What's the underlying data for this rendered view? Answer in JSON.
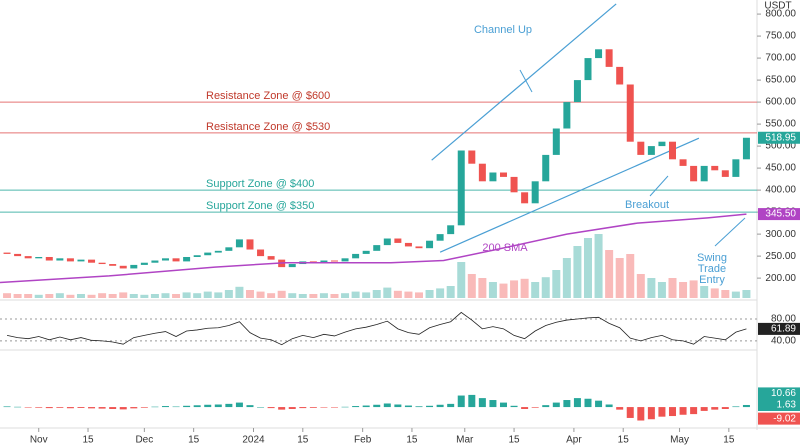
{
  "chart_data": {
    "type": "candlestick",
    "currency": "USDT",
    "xlim": [
      -11,
      204
    ],
    "ylim": [
      173,
      832
    ],
    "yticks": [
      {
        "value": 800,
        "label": "800.00"
      },
      {
        "value": 750,
        "label": "750.00"
      },
      {
        "value": 700,
        "label": "700.00"
      },
      {
        "value": 650,
        "label": "650.00"
      },
      {
        "value": 600,
        "label": "600.00"
      },
      {
        "value": 550,
        "label": "550.00"
      },
      {
        "value": 500,
        "label": "500.00"
      },
      {
        "value": 450,
        "label": "450.00"
      },
      {
        "value": 400,
        "label": "400.00"
      },
      {
        "value": 350,
        "label": "350.00"
      },
      {
        "value": 300,
        "label": "300.00"
      },
      {
        "value": 250,
        "label": "250.00"
      },
      {
        "value": 200,
        "label": "200.00"
      }
    ],
    "xticks": [
      {
        "value": 0,
        "label": "Nov"
      },
      {
        "value": 14,
        "label": "15"
      },
      {
        "value": 30,
        "label": "Dec"
      },
      {
        "value": 44,
        "label": "15"
      },
      {
        "value": 61,
        "label": "2024"
      },
      {
        "value": 75,
        "label": "15"
      },
      {
        "value": 92,
        "label": "Feb"
      },
      {
        "value": 106,
        "label": "15"
      },
      {
        "value": 121,
        "label": "Mar"
      },
      {
        "value": 135,
        "label": "15"
      },
      {
        "value": 152,
        "label": "Apr"
      },
      {
        "value": 166,
        "label": "15"
      },
      {
        "value": 182,
        "label": "May"
      },
      {
        "value": 196,
        "label": "15"
      }
    ],
    "up_color": "#26a69a",
    "down_color": "#ef5350",
    "x": [
      -9,
      -6,
      -3,
      0,
      3,
      6,
      9,
      12,
      15,
      18,
      21,
      24,
      27,
      30,
      33,
      36,
      39,
      42,
      45,
      48,
      51,
      54,
      57,
      60,
      63,
      66,
      69,
      72,
      75,
      78,
      81,
      84,
      87,
      90,
      93,
      96,
      99,
      102,
      105,
      108,
      111,
      114,
      117,
      120,
      123,
      126,
      129,
      132,
      135,
      138,
      141,
      144,
      147,
      150,
      153,
      156,
      159,
      162,
      165,
      168,
      171,
      174,
      177,
      180,
      183,
      186,
      189,
      192,
      195,
      198,
      201
    ],
    "open": [
      258,
      255,
      250,
      245,
      248,
      240,
      245,
      238,
      242,
      235,
      232,
      228,
      222,
      230,
      235,
      240,
      245,
      238,
      248,
      252,
      258,
      262,
      270,
      288,
      265,
      250,
      242,
      225,
      232,
      238,
      235,
      240,
      238,
      245,
      255,
      262,
      275,
      290,
      280,
      272,
      268,
      285,
      300,
      320,
      490,
      460,
      420,
      440,
      430,
      395,
      370,
      420,
      480,
      540,
      600,
      650,
      700,
      720,
      680,
      640,
      510,
      480,
      500,
      510,
      470,
      455,
      420,
      455,
      445,
      430,
      470
    ],
    "close": [
      255,
      250,
      245,
      248,
      240,
      245,
      238,
      242,
      235,
      232,
      228,
      222,
      230,
      235,
      240,
      245,
      238,
      248,
      252,
      258,
      262,
      270,
      288,
      265,
      250,
      242,
      225,
      232,
      238,
      235,
      240,
      238,
      245,
      255,
      262,
      275,
      290,
      280,
      272,
      268,
      285,
      300,
      320,
      490,
      460,
      420,
      440,
      430,
      395,
      370,
      420,
      480,
      540,
      600,
      650,
      700,
      720,
      680,
      640,
      510,
      480,
      500,
      510,
      470,
      455,
      420,
      455,
      445,
      430,
      470,
      518.95
    ],
    "volume_lim": [
      0,
      10
    ],
    "volume": [
      0.6,
      0.5,
      0.5,
      0.4,
      0.5,
      0.6,
      0.4,
      0.5,
      0.4,
      0.6,
      0.5,
      0.7,
      0.5,
      0.4,
      0.5,
      0.6,
      0.5,
      0.7,
      0.6,
      0.8,
      0.7,
      1.0,
      1.4,
      1.0,
      0.8,
      0.6,
      0.9,
      0.6,
      0.5,
      0.5,
      0.6,
      0.5,
      0.6,
      0.8,
      0.7,
      1.0,
      1.3,
      0.9,
      0.8,
      0.7,
      1.0,
      1.2,
      1.5,
      4.5,
      3.0,
      2.5,
      2.0,
      1.8,
      2.2,
      2.4,
      2.0,
      2.6,
      3.5,
      5.0,
      6.5,
      7.5,
      8.0,
      6.0,
      5.0,
      5.5,
      3.0,
      2.5,
      2.0,
      2.5,
      2.0,
      2.2,
      1.5,
      1.2,
      1.0,
      0.8,
      1.0
    ],
    "sma": {
      "name": "200 SMA",
      "color": "#b044c4",
      "x": [
        -11,
        20,
        50,
        70,
        100,
        115,
        130,
        150,
        170,
        190,
        201
      ],
      "values": [
        190,
        205,
        225,
        235,
        235,
        240,
        265,
        300,
        325,
        337,
        345.5
      ],
      "last_label": "345.50"
    },
    "zones": [
      {
        "label": "Resistance Zone @ $600",
        "value": 600,
        "color": "#e57373"
      },
      {
        "label": "Resistance Zone @ $530",
        "value": 530,
        "color": "#e57373"
      },
      {
        "label": "Support Zone @ $400",
        "value": 400,
        "color": "#4db6ac"
      },
      {
        "label": "Support Zone @ $350",
        "value": 350,
        "color": "#4db6ac"
      }
    ],
    "channel": {
      "label": "Channel Up",
      "color": "#4a9fd4",
      "upper": {
        "x": [
          111.6,
          164
        ],
        "values": [
          468,
          823
        ]
      },
      "lower": {
        "x": [
          114,
          187.5
        ],
        "values": [
          259,
          518
        ]
      }
    },
    "breakout_label": "Breakout",
    "entry_label": [
      "Swing",
      "Trade",
      "Entry"
    ],
    "rsi": {
      "ylim": [
        27,
        111
      ],
      "yticks": [
        {
          "value": 80,
          "label": "80.00"
        },
        {
          "value": 40,
          "label": "40.00"
        }
      ],
      "values": [
        50,
        46,
        44,
        48,
        42,
        47,
        42,
        46,
        41,
        40,
        38,
        34,
        46,
        50,
        54,
        57,
        48,
        58,
        60,
        63,
        64,
        68,
        75,
        55,
        45,
        42,
        33,
        44,
        50,
        46,
        52,
        49,
        56,
        62,
        65,
        70,
        76,
        62,
        55,
        52,
        64,
        70,
        75,
        92,
        78,
        62,
        66,
        62,
        50,
        44,
        58,
        68,
        74,
        78,
        80,
        82,
        83,
        72,
        64,
        45,
        40,
        46,
        50,
        42,
        40,
        34,
        48,
        45,
        42,
        56,
        61.89
      ]
    },
    "macd": {
      "ylim": [
        -14,
        43
      ],
      "hist": [
        0.5,
        0.2,
        -0.3,
        -0.5,
        -0.8,
        -0.6,
        -0.9,
        -0.7,
        -1.0,
        -1.2,
        -1.5,
        -1.8,
        -1.0,
        -0.5,
        0.3,
        0.8,
        0.4,
        1.0,
        1.4,
        1.8,
        2.0,
        2.5,
        3.5,
        1.5,
        0,
        -0.8,
        -2.0,
        -1.5,
        -0.8,
        -0.6,
        -0.2,
        -0.3,
        0.2,
        0.8,
        1.2,
        1.8,
        2.8,
        2.0,
        1.2,
        0.6,
        1.0,
        1.8,
        2.5,
        9.0,
        9.5,
        7.0,
        5.5,
        3.5,
        1.0,
        -1.5,
        -0.5,
        1.5,
        3.5,
        5.5,
        7.0,
        6.5,
        5.0,
        2.0,
        -2.0,
        -8.5,
        -10.5,
        -9.5,
        -7.5,
        -7.0,
        -6.0,
        -5.5,
        -3.0,
        -2.0,
        -1.5,
        0.5,
        1.63
      ],
      "last_values": [
        10.66,
        1.63,
        -9.02
      ]
    }
  }
}
